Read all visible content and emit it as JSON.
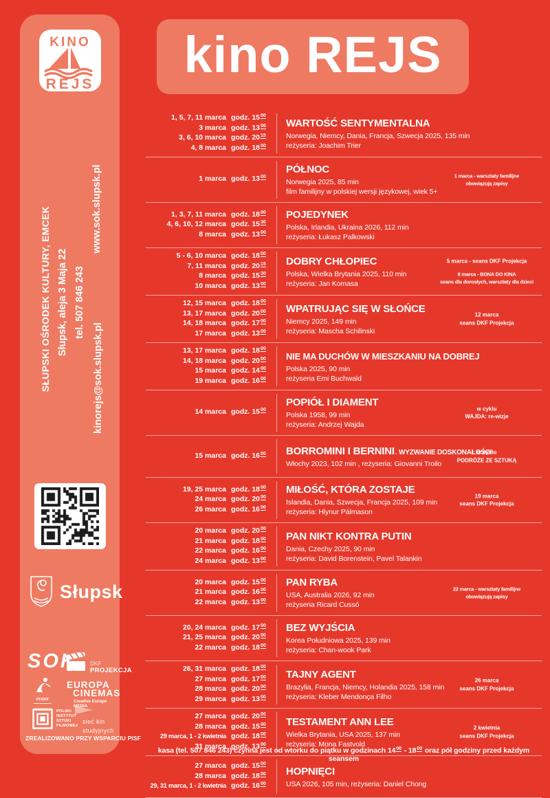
{
  "colors": {
    "background": "#e5382b",
    "panel": "#ee7a61",
    "text": "#ffffff"
  },
  "header": {
    "title": "kino REJS"
  },
  "sidebar": {
    "logo": {
      "top": "KINO",
      "bottom": "REJS"
    },
    "contact": {
      "organization": "SŁUPSKI OŚRODEK KULTURY, EMCEK",
      "address": "Słupsk, aleja 3 Maja 22",
      "phone": "tel. 507 846 243",
      "email": "kinorejs@sok.slupsk.pl",
      "www": "www.sok.slupsk.pl"
    },
    "city_logo": "Słupsk",
    "partners": {
      "sok": "SOK",
      "dkf": "DKF",
      "projekcja": "PROJEKCJA",
      "pfdkf": "PFDKF",
      "europa_line1": "EUROPA",
      "europa_line2": "CINEMAS",
      "europa_sub": "Creative Europe MEDIA",
      "pisf": "POLSKI\nINSTYTUT\nSZTUKI\nFILMOWEJ",
      "siec": "sieć kin\nstudyjnych",
      "credit": "ZREALIZOWANO PRZY WSPARCIU PISF"
    }
  },
  "films": [
    {
      "title": "WARTOŚĆ SENTYMENTALNA",
      "details": [
        "Norwegia, Niemcy, Dania, Francja, Szwecja 2025, 135 min",
        "reżyseria: Joachim Trier"
      ],
      "showings": [
        {
          "d": "1, 5, 7, 11 marca",
          "t": "godz. 15",
          "m": "00"
        },
        {
          "d": "3 marca",
          "t": "godz. 13",
          "m": "00"
        },
        {
          "d": "3, 6, 10 marca",
          "t": "godz. 20",
          "m": "15"
        },
        {
          "d": "4, 8 marca",
          "t": "godz. 18",
          "m": "00"
        }
      ],
      "notes": []
    },
    {
      "title": "PÓŁNOC",
      "details": [
        "Norwegia 2025, 85 min",
        "film familijny w polskiej wersji językowej, wiek 5+"
      ],
      "showings": [
        {
          "d": "1 marca",
          "t": "godz. 13",
          "m": "00"
        }
      ],
      "notes": [
        "1 marca - warsztaty familijne\nobowiązują zapisy"
      ]
    },
    {
      "title": "POJEDYNEK",
      "details": [
        "Polska, Irlandia, Ukraina 2026, 112 min",
        "reżyseria: Łukasz Palkowski"
      ],
      "showings": [
        {
          "d": "1, 3, 7, 11 marca",
          "t": "godz. 18",
          "m": "00"
        },
        {
          "d": "4, 6, 10, 12 marca",
          "t": "godz. 15",
          "m": "30"
        },
        {
          "d": "8 marca",
          "t": "godz. 13",
          "m": "00"
        }
      ],
      "notes": []
    },
    {
      "title": "DOBRY CHŁOPIEC",
      "details": [
        "Polska, Wielka Brytania 2025, 110 min",
        "reżyseria: Jan Komasa"
      ],
      "showings": [
        {
          "d": "5 - 6, 10 marca",
          "t": "godz. 18",
          "m": "00"
        },
        {
          "d": "7, 11 marca",
          "t": "godz. 20",
          "m": "15"
        },
        {
          "d": "8 marca",
          "t": "godz. 15",
          "m": "30"
        },
        {
          "d": "10 marca",
          "t": "godz. 13",
          "m": "00"
        }
      ],
      "notes": [
        "5 marca - seans DKF Projekcja",
        "8 marca - BONA DO KINA\nseans dla dorosłych, warsztaty dla dzieci"
      ]
    },
    {
      "title": "WPATRUJĄC SIĘ W SŁOŃCE",
      "details": [
        "Niemcy 2025, 149 min",
        "reżyseria: Mascha Schilinski"
      ],
      "showings": [
        {
          "d": "12, 15 marca",
          "t": "godz. 18",
          "m": "00"
        },
        {
          "d": "13, 17 marca",
          "t": "godz. 20",
          "m": "00"
        },
        {
          "d": "14, 18 marca",
          "t": "godz. 17",
          "m": "00"
        },
        {
          "d": "17 marca",
          "t": "godz. 13",
          "m": "00"
        }
      ],
      "notes": [
        "12 marca\nseans DKF Projekcja"
      ]
    },
    {
      "title": "NIE MA DUCHÓW W MIESZKANIU NA DOBREJ",
      "details": [
        "Polska 2025, 90 min",
        "reżyseria Emi Buchwald"
      ],
      "showings": [
        {
          "d": "13, 17 marca",
          "t": "godz. 18",
          "m": "00"
        },
        {
          "d": "14, 18 marca",
          "t": "godz. 20",
          "m": "00"
        },
        {
          "d": "15 marca",
          "t": "godz. 14",
          "m": "00"
        },
        {
          "d": "19 marca",
          "t": "godz. 16",
          "m": "00"
        }
      ],
      "notes": []
    },
    {
      "title": "POPIÓŁ I DIAMENT",
      "details": [
        "Polska 1958, 99 min",
        "reżyseria: Andrzej Wajda"
      ],
      "showings": [
        {
          "d": "14 marca",
          "t": "godz. 15",
          "m": "00"
        }
      ],
      "notes": [
        "w cyklu\nWAJDA: re-wizje"
      ]
    },
    {
      "title": "BORROMINI I BERNINI",
      "subtitle": ". WYZWANIE DOSKONAŁOŚCI",
      "details": [
        "Włochy 2023, 102 min , reżyseria: Giovanni Troilo"
      ],
      "showings": [
        {
          "d": "15 marca",
          "t": "godz. 16",
          "m": "00"
        }
      ],
      "notes": [
        "w cyklu\nPODRÓŻE ZE SZTUKĄ"
      ]
    },
    {
      "title": "MIŁOŚĆ, KTÓRA ZOSTAJE",
      "details": [
        "Islandia, Dania, Szwecja, Francja 2025, 109 min",
        "reżyseria: Hlynur Pálmason"
      ],
      "showings": [
        {
          "d": "19, 25 marca",
          "t": "godz. 18",
          "m": "00"
        },
        {
          "d": "24 marca",
          "t": "godz. 20",
          "m": "00"
        },
        {
          "d": "26 marca",
          "t": "godz. 16",
          "m": "00"
        }
      ],
      "notes": [
        "19 marca\nseans DKF Projekcja"
      ]
    },
    {
      "title": "PAN NIKT KONTRA PUTIN",
      "details": [
        "Dania, Czechy 2025, 90 min",
        "reżyseria: David Borenstein, Pavel Talankin"
      ],
      "showings": [
        {
          "d": "20 marca",
          "t": "godz. 20",
          "m": "00"
        },
        {
          "d": "21 marca",
          "t": "godz. 18",
          "m": "00"
        },
        {
          "d": "22 marca",
          "t": "godz. 16",
          "m": "00"
        },
        {
          "d": "24 marca",
          "t": "godz. 13",
          "m": "00"
        }
      ],
      "notes": []
    },
    {
      "title": "PAN RYBA",
      "details": [
        "USA, Australia 2026, 92 min",
        "reżyseria Ricard Cussó"
      ],
      "showings": [
        {
          "d": "20 marca",
          "t": "godz. 15",
          "m": "00"
        },
        {
          "d": "21 marca",
          "t": "godz. 16",
          "m": "00"
        },
        {
          "d": "22 marca",
          "t": "godz. 13",
          "m": "00"
        }
      ],
      "notes": [
        "22 marca - warsztaty familijne\nobowiązują zapisy"
      ]
    },
    {
      "title": "BEZ WYJŚCIA",
      "details": [
        "Korea Południowa 2025, 139 min",
        "reżyseria: Chan-wook Park"
      ],
      "showings": [
        {
          "d": "20, 24 marca",
          "t": "godz. 17",
          "m": "00"
        },
        {
          "d": "21, 25 marca",
          "t": "godz. 20",
          "m": "00"
        },
        {
          "d": "22 marca",
          "t": "godz. 18",
          "m": "00"
        }
      ],
      "notes": []
    },
    {
      "title": "TAJNY AGENT",
      "details": [
        "Brazylia, Francja, Niemcy, Holandia 2025, 158 min",
        "reżyseria: Kleber Mendonça Filho"
      ],
      "showings": [
        {
          "d": "26, 31 marca",
          "t": "godz. 18",
          "m": "00"
        },
        {
          "d": "27 marca",
          "t": "godz. 17",
          "m": "00"
        },
        {
          "d": "28 marca",
          "t": "godz. 20",
          "m": "00"
        },
        {
          "d": "29 marca",
          "t": "godz. 13",
          "m": "00"
        }
      ],
      "notes": [
        "26 marca\nseans DKF Projekcja"
      ]
    },
    {
      "title": "TESTAMENT ANN LEE",
      "details": [
        "Wielka Brytania, USA 2025, 137 min",
        "reżyseria: Mona Fastvold"
      ],
      "showings": [
        {
          "d": "27 marca",
          "t": "godz. 20",
          "m": "00"
        },
        {
          "d": "28 marca",
          "t": "godz. 15",
          "m": "00"
        },
        {
          "d": "29 marca, 1 - 2 kwietnia",
          "t": "godz. 18",
          "m": "00"
        },
        {
          "d": "31 marca",
          "t": "godz. 13",
          "m": "00"
        }
      ],
      "notes": [
        "2 kwietnia\nseans DKF Projekcja"
      ]
    },
    {
      "title": "HOPNIĘCI",
      "details": [
        "USA 2026, 105 min, reżyseria: Daniel Chong"
      ],
      "showings": [
        {
          "d": "27 marca",
          "t": "godz. 15",
          "m": "00"
        },
        {
          "d": "28 marca",
          "t": "godz. 18",
          "m": "00"
        },
        {
          "d": "29, 31 marca, 1 - 2 kwietnia",
          "t": "godz. 16",
          "m": "00"
        }
      ],
      "notes": []
    }
  ],
  "footer": {
    "p1": "kasa (tel. 507 846 243) czynna jest od wtorku do piątku w godzinach 14",
    "s1": "00",
    "p2": " - 18",
    "s2": "00",
    "p3": " oraz pół godziny przed każdym seansem"
  }
}
